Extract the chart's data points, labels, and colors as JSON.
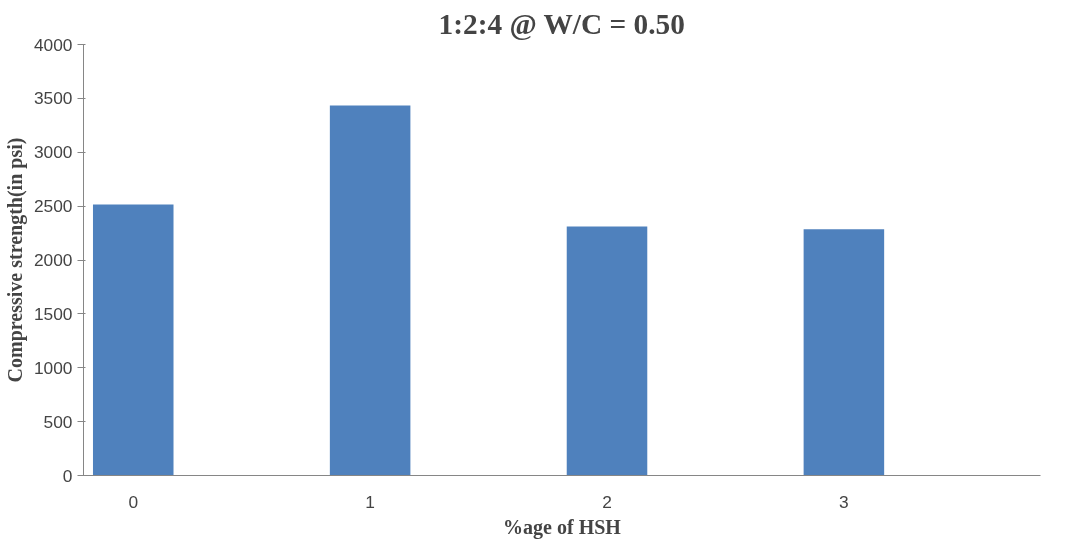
{
  "chart_data": {
    "type": "bar",
    "title": "1:2:4 @ W/C = 0.50",
    "xlabel": "%age of HSH",
    "ylabel": "Compressive strength(in psi)",
    "categories": [
      "0",
      "1",
      "2",
      "3"
    ],
    "values": [
      2515,
      3435,
      2310,
      2285
    ],
    "color": "#4f81bd",
    "ylim": [
      0,
      4000
    ],
    "yticks": [
      0,
      500,
      1000,
      1500,
      2000,
      2500,
      3000,
      3500,
      4000
    ],
    "grid": false
  }
}
